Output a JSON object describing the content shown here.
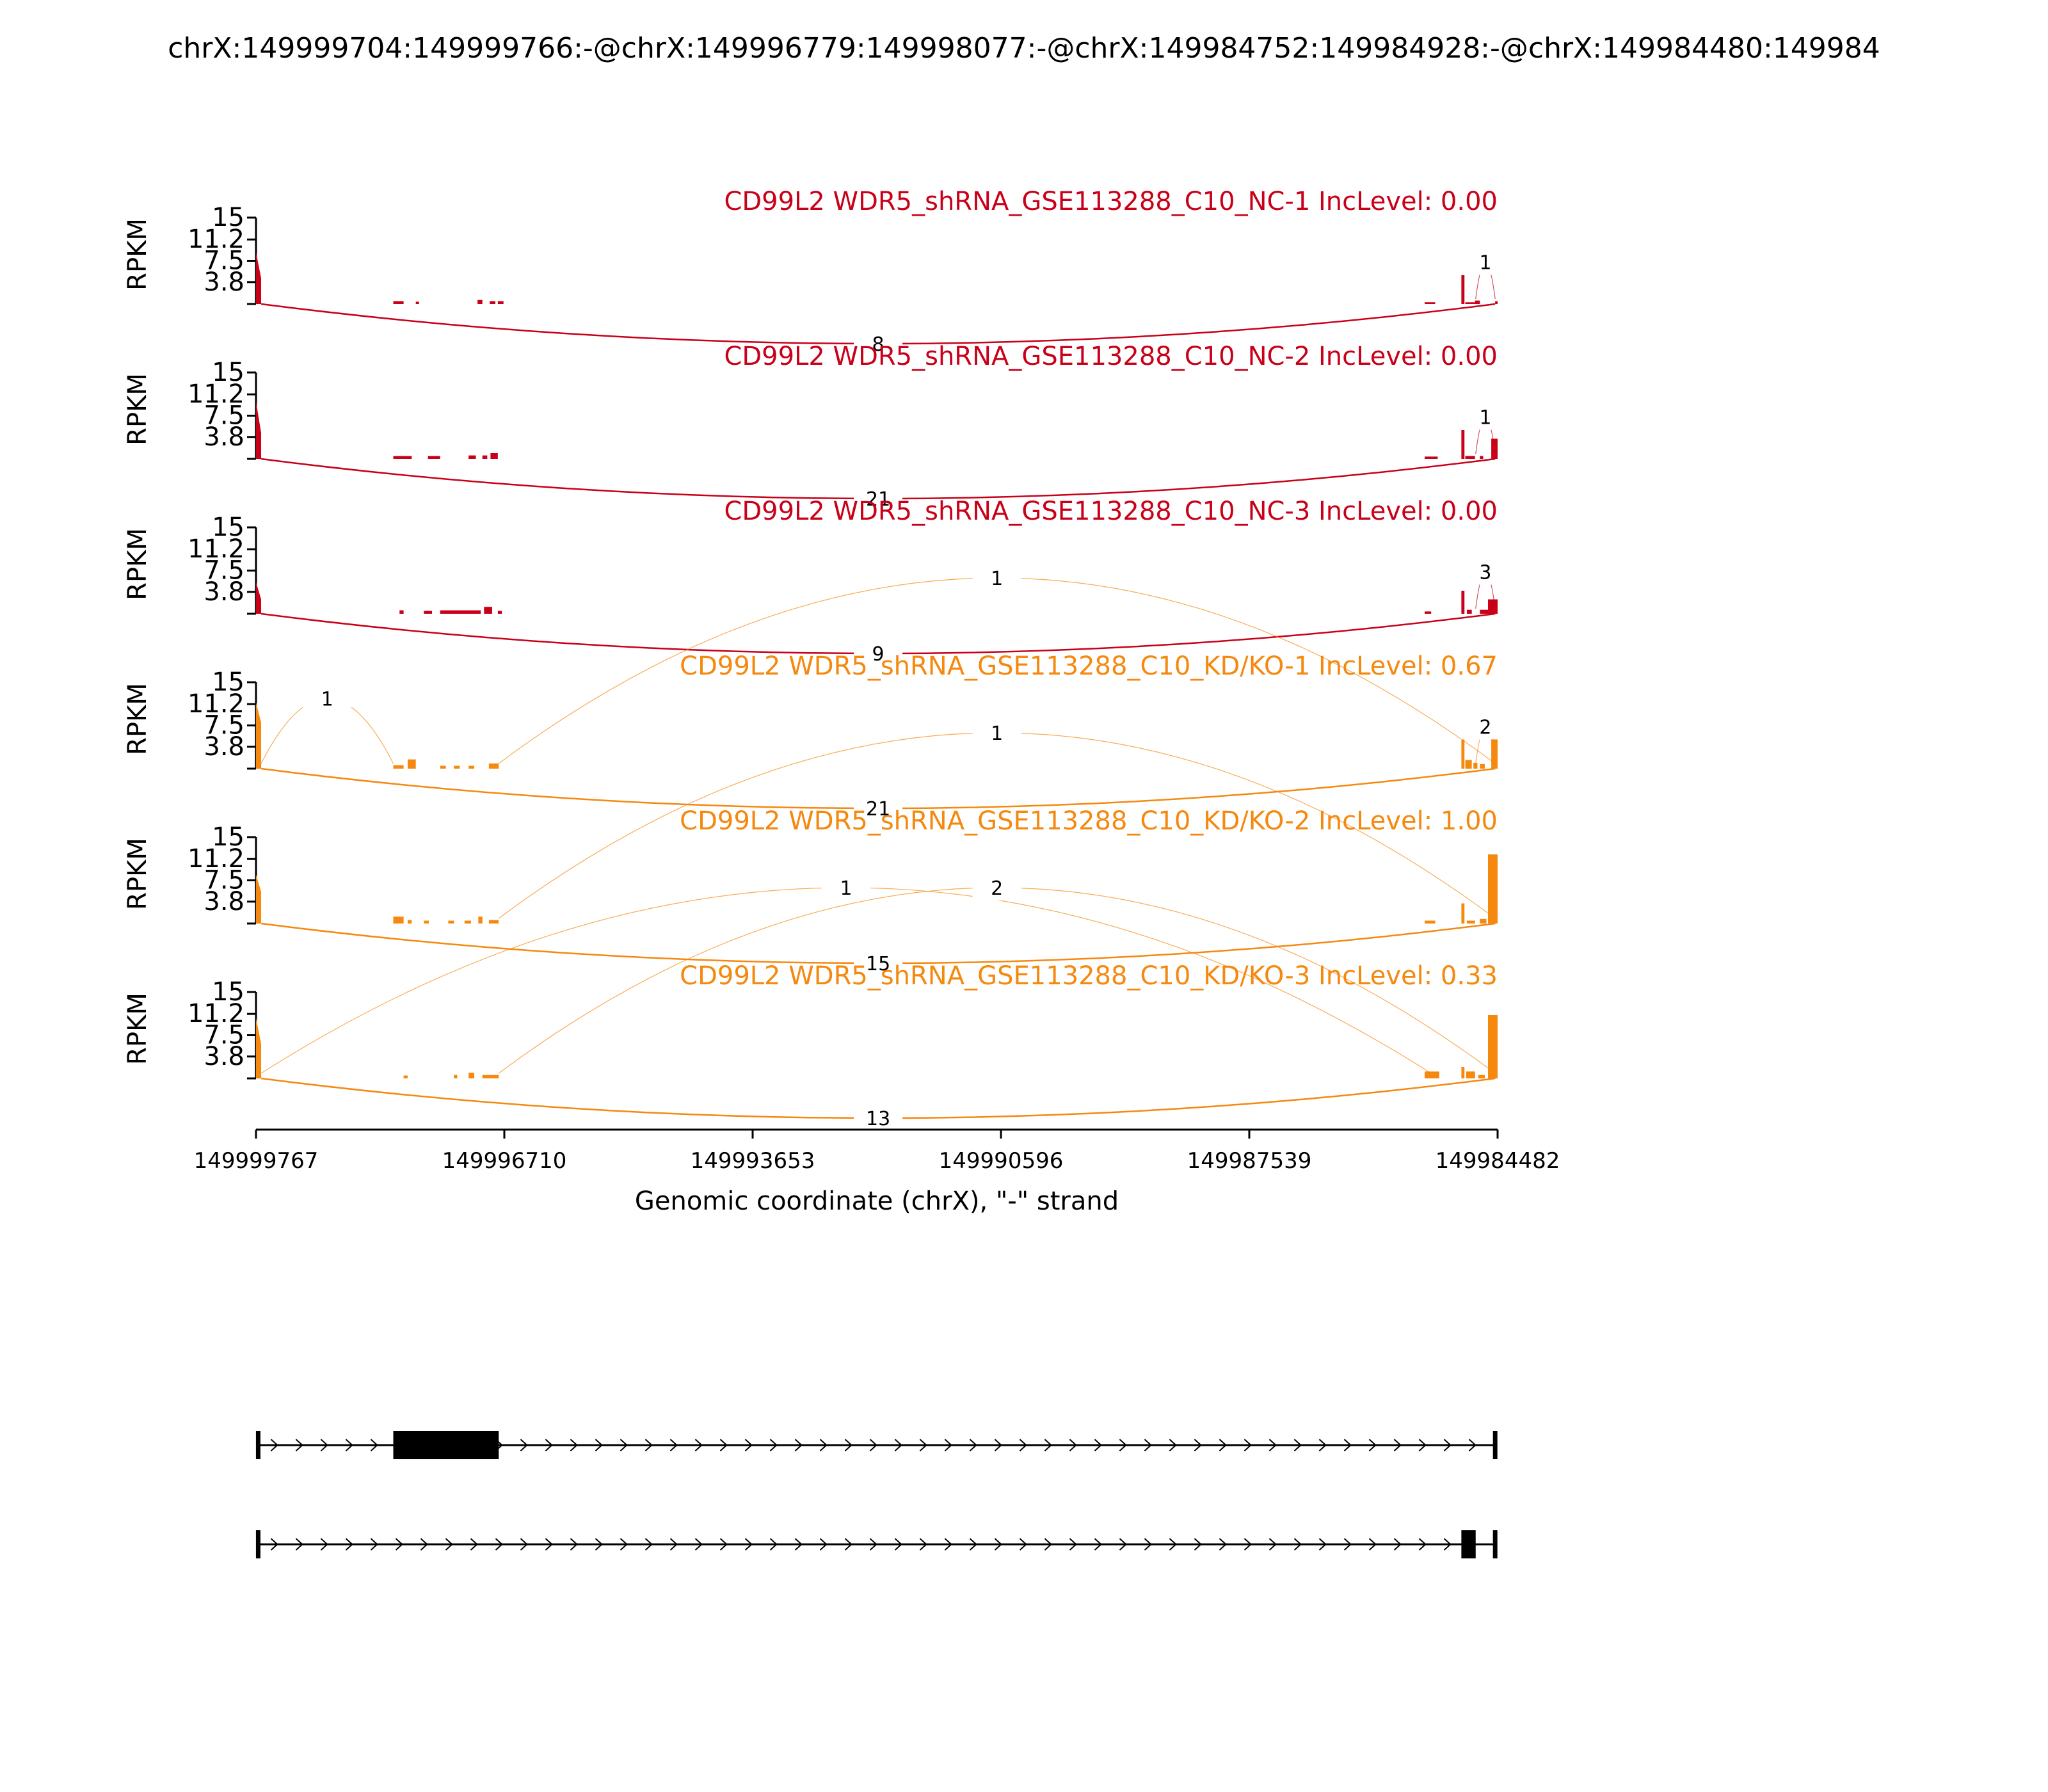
{
  "chart_data": {
    "type": "area",
    "title": "chrX:149999704:149999766:-@chrX:149996779:149998077:-@chrX:149984752:149984928:-@chrX:149984480:149984",
    "xlabel": "Genomic coordinate (chrX), \"-\" strand",
    "ylabel": "RPKM",
    "ylim": [
      0,
      15
    ],
    "xlim": [
      149999767,
      149984482
    ],
    "x_reversed": true,
    "x_ticks": [
      149999767,
      149996710,
      149993653,
      149990596,
      149987539,
      149984482
    ],
    "x_tick_labels": [
      "149999767",
      "149996710",
      "149993653",
      "149990596",
      "149987539",
      "149984482"
    ],
    "y_ticks": [
      3.8,
      7.5,
      11.2,
      15
    ],
    "y_tick_labels": [
      "3.8",
      "7.5",
      "11.2",
      "15"
    ],
    "grid": false,
    "colors": {
      "NC": "#c80018",
      "KD": "#f5880e"
    },
    "series": [
      {
        "name": "CD99L2 WDR5_shRNA_GSE113288_C10_NC-1 IncLevel: 0.00",
        "group": "NC",
        "coverage": [
          {
            "start": 149999767,
            "end": 149999704,
            "peak": 9.0,
            "end_value": 4.5
          },
          {
            "start": 149998077,
            "end": 149997950,
            "peak": 0.5
          },
          {
            "start": 149997800,
            "end": 149997760,
            "peak": 0.4
          },
          {
            "start": 149997040,
            "end": 149996980,
            "peak": 0.7
          },
          {
            "start": 149996890,
            "end": 149996820,
            "peak": 0.5
          },
          {
            "start": 149996790,
            "end": 149996720,
            "peak": 0.5
          },
          {
            "start": 149984928,
            "end": 149984890,
            "peak": 5.0
          },
          {
            "start": 149984760,
            "end": 149984700,
            "peak": 0.6
          },
          {
            "start": 149984880,
            "end": 149984760,
            "peak": 0.3
          },
          {
            "start": 149985380,
            "end": 149985250,
            "peak": 0.3
          },
          {
            "start": 149984512,
            "end": 149984482,
            "peak": 0.5
          }
        ],
        "junctions": [
          {
            "from": 149999704,
            "to": 149984512,
            "count": 8,
            "side": "below"
          },
          {
            "from": 149984752,
            "to": 149984512,
            "count": 1,
            "side": "above"
          }
        ]
      },
      {
        "name": "CD99L2 WDR5_shRNA_GSE113288_C10_NC-2 IncLevel: 0.00",
        "group": "NC",
        "coverage": [
          {
            "start": 149999767,
            "end": 149999704,
            "peak": 10.0,
            "end_value": 4.5
          },
          {
            "start": 149998077,
            "end": 149997850,
            "peak": 0.5
          },
          {
            "start": 149997650,
            "end": 149997500,
            "peak": 0.5
          },
          {
            "start": 149997150,
            "end": 149997060,
            "peak": 0.6
          },
          {
            "start": 149996980,
            "end": 149996920,
            "peak": 0.6
          },
          {
            "start": 149996880,
            "end": 149996790,
            "peak": 1.0
          },
          {
            "start": 149984928,
            "end": 149984890,
            "peak": 5.0
          },
          {
            "start": 149984880,
            "end": 149984760,
            "peak": 0.5
          },
          {
            "start": 149984700,
            "end": 149984660,
            "peak": 0.5
          },
          {
            "start": 149985380,
            "end": 149985220,
            "peak": 0.4
          },
          {
            "start": 149984560,
            "end": 149984482,
            "peak": 3.5
          }
        ],
        "junctions": [
          {
            "from": 149999704,
            "to": 149984512,
            "count": 21,
            "side": "below"
          },
          {
            "from": 149984752,
            "to": 149984512,
            "count": 1,
            "side": "above"
          }
        ]
      },
      {
        "name": "CD99L2 WDR5_shRNA_GSE113288_C10_NC-3 IncLevel: 0.00",
        "group": "NC",
        "coverage": [
          {
            "start": 149999767,
            "end": 149999704,
            "peak": 5.5,
            "end_value": 2.5
          },
          {
            "start": 149998000,
            "end": 149997950,
            "peak": 0.6
          },
          {
            "start": 149997700,
            "end": 149997600,
            "peak": 0.5
          },
          {
            "start": 149997500,
            "end": 149997000,
            "peak": 0.6
          },
          {
            "start": 149996960,
            "end": 149996860,
            "peak": 1.2
          },
          {
            "start": 149996790,
            "end": 149996740,
            "peak": 0.5
          },
          {
            "start": 149984928,
            "end": 149984890,
            "peak": 4.0
          },
          {
            "start": 149984860,
            "end": 149984800,
            "peak": 0.7
          },
          {
            "start": 149984700,
            "end": 149984600,
            "peak": 0.7
          },
          {
            "start": 149985380,
            "end": 149985300,
            "peak": 0.4
          },
          {
            "start": 149984600,
            "end": 149984482,
            "peak": 2.5
          }
        ],
        "junctions": [
          {
            "from": 149999704,
            "to": 149984512,
            "count": 9,
            "side": "below"
          },
          {
            "from": 149984752,
            "to": 149984512,
            "count": 3,
            "side": "above"
          }
        ]
      },
      {
        "name": "CD99L2 WDR5_shRNA_GSE113288_C10_KD/KO-1 IncLevel: 0.67",
        "group": "KD",
        "coverage": [
          {
            "start": 149999767,
            "end": 149999704,
            "peak": 11.5,
            "end_value": 8.0
          },
          {
            "start": 149998077,
            "end": 149997950,
            "peak": 0.6
          },
          {
            "start": 149997900,
            "end": 149997800,
            "peak": 1.6
          },
          {
            "start": 149997500,
            "end": 149997430,
            "peak": 0.5
          },
          {
            "start": 149997330,
            "end": 149997260,
            "peak": 0.5
          },
          {
            "start": 149997150,
            "end": 149997080,
            "peak": 0.5
          },
          {
            "start": 149996900,
            "end": 149996779,
            "peak": 0.9
          },
          {
            "start": 149984928,
            "end": 149984890,
            "peak": 5.5
          },
          {
            "start": 149984880,
            "end": 149984800,
            "peak": 1.5
          },
          {
            "start": 149984780,
            "end": 149984730,
            "peak": 1.0
          },
          {
            "start": 149984700,
            "end": 149984640,
            "peak": 0.8
          },
          {
            "start": 149984560,
            "end": 149984482,
            "peak": 6.0
          }
        ],
        "junctions": [
          {
            "from": 149999704,
            "to": 149984512,
            "count": 21,
            "side": "below"
          },
          {
            "from": 149999704,
            "to": 149998077,
            "count": 1,
            "side": "above"
          },
          {
            "from": 149996779,
            "to": 149984512,
            "count": 1,
            "side": "above"
          },
          {
            "from": 149984752,
            "to": 149984512,
            "count": 2,
            "side": "above"
          }
        ]
      },
      {
        "name": "CD99L2 WDR5_shRNA_GSE113288_C10_KD/KO-2 IncLevel: 1.00",
        "group": "KD",
        "coverage": [
          {
            "start": 149999767,
            "end": 149999704,
            "peak": 8.5,
            "end_value": 5.5
          },
          {
            "start": 149998077,
            "end": 149997950,
            "peak": 1.2
          },
          {
            "start": 149997900,
            "end": 149997850,
            "peak": 0.6
          },
          {
            "start": 149997700,
            "end": 149997640,
            "peak": 0.5
          },
          {
            "start": 149997400,
            "end": 149997330,
            "peak": 0.5
          },
          {
            "start": 149997200,
            "end": 149997120,
            "peak": 0.5
          },
          {
            "start": 149997030,
            "end": 149996980,
            "peak": 1.2
          },
          {
            "start": 149996900,
            "end": 149996779,
            "peak": 0.6
          },
          {
            "start": 149984928,
            "end": 149984890,
            "peak": 3.5
          },
          {
            "start": 149984860,
            "end": 149984760,
            "peak": 0.5
          },
          {
            "start": 149984700,
            "end": 149984620,
            "peak": 0.8
          },
          {
            "start": 149985380,
            "end": 149985250,
            "peak": 0.5
          },
          {
            "start": 149984600,
            "end": 149984482,
            "peak": 12.0
          }
        ],
        "junctions": [
          {
            "from": 149999704,
            "to": 149984512,
            "count": 15,
            "side": "below"
          },
          {
            "from": 149996779,
            "to": 149984512,
            "count": 1,
            "side": "above"
          }
        ]
      },
      {
        "name": "CD99L2 WDR5_shRNA_GSE113288_C10_KD/KO-3 IncLevel: 0.33",
        "group": "KD",
        "coverage": [
          {
            "start": 149999767,
            "end": 149999704,
            "peak": 10.5,
            "end_value": 6.0
          },
          {
            "start": 149997950,
            "end": 149997900,
            "peak": 0.5
          },
          {
            "start": 149997330,
            "end": 149997290,
            "peak": 0.6
          },
          {
            "start": 149997150,
            "end": 149997080,
            "peak": 1.0
          },
          {
            "start": 149996980,
            "end": 149996779,
            "peak": 0.6
          },
          {
            "start": 149984928,
            "end": 149984890,
            "peak": 2.0
          },
          {
            "start": 149984870,
            "end": 149984760,
            "peak": 1.2
          },
          {
            "start": 149984720,
            "end": 149984640,
            "peak": 0.6
          },
          {
            "start": 149985380,
            "end": 149985200,
            "peak": 1.2
          },
          {
            "start": 149984600,
            "end": 149984482,
            "peak": 11.0
          }
        ],
        "junctions": [
          {
            "from": 149999704,
            "to": 149984512,
            "count": 13,
            "side": "below"
          },
          {
            "from": 149999704,
            "to": 149985300,
            "count": 1,
            "side": "above"
          },
          {
            "from": 149996779,
            "to": 149984512,
            "count": 2,
            "side": "above"
          }
        ]
      }
    ],
    "isoforms": [
      {
        "blocks": [
          {
            "start": 149998077,
            "end": 149996779
          }
        ],
        "span": [
          149999740,
          149984512
        ]
      },
      {
        "blocks": [
          {
            "start": 149984928,
            "end": 149984752
          }
        ],
        "span": [
          149999740,
          149984512
        ]
      }
    ]
  }
}
